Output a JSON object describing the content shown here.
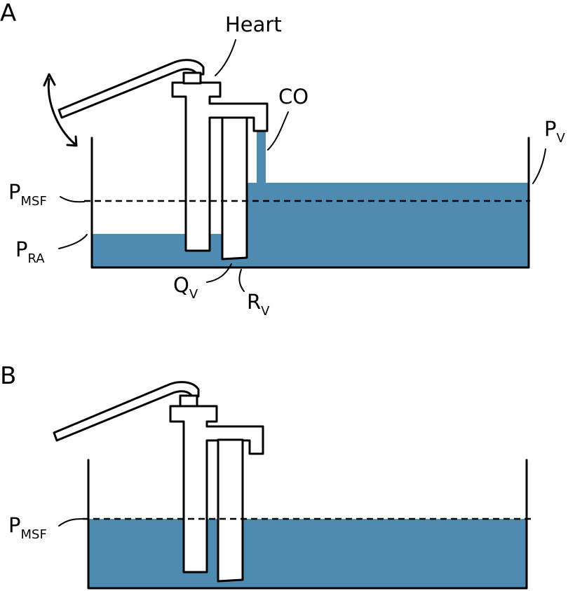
{
  "colors": {
    "water": "#4f8ab0",
    "line": "#000000",
    "background": "#ffffff"
  },
  "panel_a": {
    "letter": "A",
    "heart": "Heart",
    "co": "CO",
    "pv": {
      "main": "P",
      "sub": "V"
    },
    "pmsf": {
      "main": "P",
      "sub": "MSF"
    },
    "pra": {
      "main": "P",
      "sub": "RA"
    },
    "qv": {
      "main": "Q",
      "sub": "V"
    },
    "rv": {
      "main": "R",
      "sub": "V"
    }
  },
  "panel_b": {
    "letter": "B",
    "pmsf": {
      "main": "P",
      "sub": "MSF"
    }
  }
}
